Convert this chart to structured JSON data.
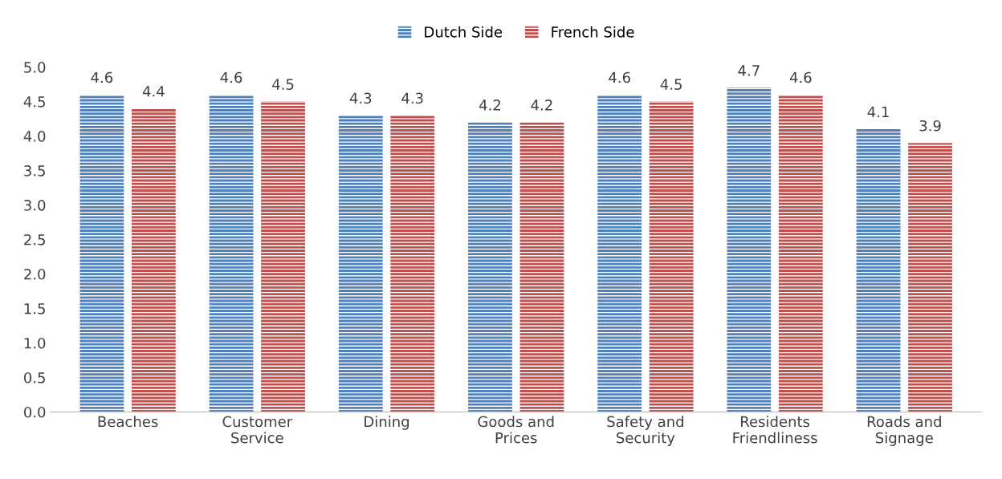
{
  "chart_data": {
    "type": "bar",
    "categories": [
      "Beaches",
      "Customer\nService",
      "Dining",
      "Goods and\nPrices",
      "Safety and\nSecurity",
      "Residents\nFriendliness",
      "Roads and\nSignage"
    ],
    "series": [
      {
        "name": "Dutch Side",
        "color": "#4f81bd",
        "values": [
          4.6,
          4.6,
          4.3,
          4.2,
          4.6,
          4.7,
          4.1
        ]
      },
      {
        "name": "French Side",
        "color": "#c0504d",
        "values": [
          4.4,
          4.5,
          4.3,
          4.2,
          4.5,
          4.6,
          3.9
        ]
      }
    ],
    "ylim": [
      0,
      5
    ],
    "yticks": [
      {
        "value": 0,
        "label": "0.0"
      },
      {
        "value": 0.5,
        "label": "0.5"
      },
      {
        "value": 1,
        "label": "1.0"
      },
      {
        "value": 1.5,
        "label": "1.5"
      },
      {
        "value": 2,
        "label": "2.0"
      },
      {
        "value": 2.5,
        "label": "2.5"
      },
      {
        "value": 3,
        "label": "3.0"
      },
      {
        "value": 3.5,
        "label": "3.5"
      },
      {
        "value": 4,
        "label": "4.0"
      },
      {
        "value": 4.5,
        "label": "4.5"
      },
      {
        "value": 5,
        "label": "5.0"
      }
    ],
    "data_labels": true,
    "legend": "top",
    "grid": false
  }
}
